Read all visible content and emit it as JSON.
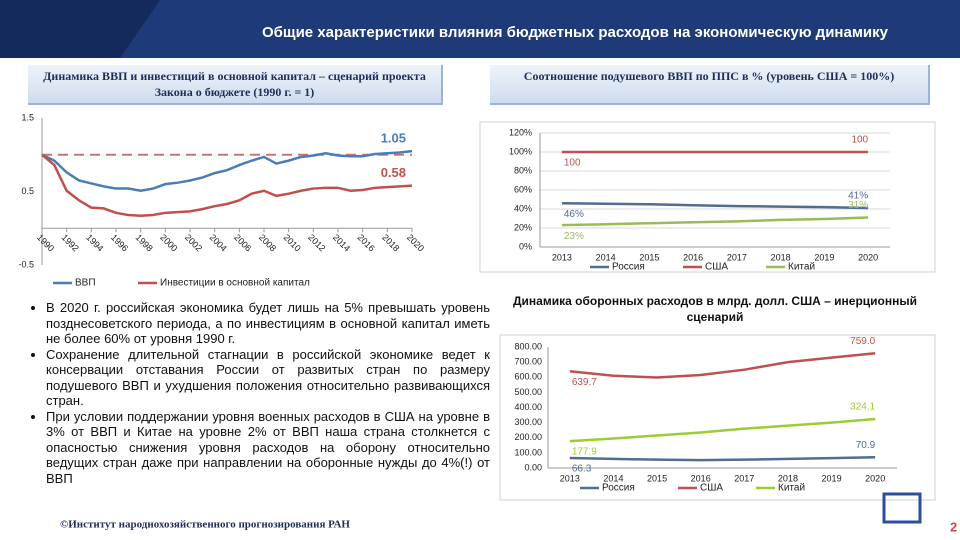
{
  "header": {
    "title": "Общие характеристики влияния бюджетных расходов на экономическую динамику"
  },
  "bullets": [
    "В 2020 г. российская экономика будет лишь на 5% превышать уровень позднесоветского периода, а по инвестициям в основной капитал иметь не более 60% от уровня 1990 г.",
    "Сохранение длительной стагнации в российской экономике ведет к консервации отставания России от развитых стран по размеру подушевого ВВП и ухудшения положения относительно развивающихся стран.",
    "При условии поддержании уровня военных расходов в США на уровне в 3% от ВВП и Китае на уровне 2% от ВВП наша страна столкнется с опасностью снижения уровня расходов на оборону относительно ведущих стран даже при направлении на оборонные нужды до 4%(!) от ВВП"
  ],
  "footer": {
    "text": "©Институт народнохозяйственного прогнозирования РАН",
    "page": "2"
  },
  "chart_data": [
    {
      "type": "line",
      "title": "Динамика ВВП и инвестиций в основной капитал – сценарий проекта Закона о бюджете (1990 г. = 1)",
      "x": [
        1990,
        1991,
        1992,
        1993,
        1994,
        1995,
        1996,
        1997,
        1998,
        1999,
        2000,
        2001,
        2002,
        2003,
        2004,
        2005,
        2006,
        2007,
        2008,
        2009,
        2010,
        2011,
        2012,
        2013,
        2014,
        2015,
        2016,
        2017,
        2018,
        2019,
        2020
      ],
      "xlim": [
        1990,
        2020
      ],
      "xticks": [
        1990,
        1992,
        1994,
        1996,
        1998,
        2000,
        2002,
        2004,
        2006,
        2008,
        2010,
        2012,
        2014,
        2016,
        2018,
        2020
      ],
      "ylim": [
        -0.5,
        1.5
      ],
      "yticks": [
        -0.5,
        0.5,
        1.5
      ],
      "hline": 1,
      "grid": false,
      "data_labels": "last",
      "series": [
        {
          "name": "ВВП",
          "color": "#4a7db5",
          "values": [
            1.0,
            0.92,
            0.76,
            0.65,
            0.61,
            0.57,
            0.54,
            0.54,
            0.51,
            0.54,
            0.6,
            0.62,
            0.65,
            0.69,
            0.75,
            0.79,
            0.86,
            0.92,
            0.97,
            0.88,
            0.92,
            0.97,
            0.99,
            1.02,
            0.99,
            0.98,
            0.98,
            1.01,
            1.02,
            1.03,
            1.05
          ]
        },
        {
          "name": "Инвестиции в основной капитал",
          "color": "#c0504d",
          "values": [
            1.0,
            0.86,
            0.51,
            0.38,
            0.28,
            0.27,
            0.21,
            0.18,
            0.17,
            0.18,
            0.21,
            0.22,
            0.23,
            0.26,
            0.3,
            0.33,
            0.38,
            0.47,
            0.51,
            0.44,
            0.47,
            0.51,
            0.54,
            0.55,
            0.55,
            0.51,
            0.52,
            0.55,
            0.56,
            0.57,
            0.58
          ]
        }
      ]
    },
    {
      "type": "line",
      "title": "Соотношение подушевого ВВП по ППС в % (уровень США = 100%)",
      "categories": [
        "2013",
        "2014",
        "2015",
        "2016",
        "2017",
        "2018",
        "2019",
        "2020"
      ],
      "ylim": [
        0,
        120
      ],
      "yticks": [
        {
          "value": 0,
          "label": "0%"
        },
        {
          "value": 20,
          "label": "20%"
        },
        {
          "value": 40,
          "label": "40%"
        },
        {
          "value": 60,
          "label": "60%"
        },
        {
          "value": 80,
          "label": "80%"
        },
        {
          "value": 100,
          "label": "100%"
        },
        {
          "value": 120,
          "label": "120%"
        }
      ],
      "grid": true,
      "data_labels": "ends",
      "series": [
        {
          "name": "Россия",
          "color": "#4f6d91",
          "values": [
            46,
            45.5,
            45,
            44,
            43,
            42.5,
            42,
            41
          ],
          "value_labels": [
            "46%",
            null,
            null,
            null,
            null,
            null,
            null,
            "41%"
          ]
        },
        {
          "name": "США",
          "color": "#c0504d",
          "values": [
            100,
            100,
            100,
            100,
            100,
            100,
            100,
            100
          ]
        },
        {
          "name": "Китай",
          "color": "#9bbb59",
          "values": [
            23,
            24,
            25,
            26,
            27,
            28.5,
            29.5,
            31
          ],
          "value_labels": [
            "23%",
            null,
            null,
            null,
            null,
            null,
            null,
            "31%"
          ]
        }
      ]
    },
    {
      "type": "line",
      "title": "Динамика оборонных расходов в млрд. долл. США – инерционный сценарий",
      "categories": [
        "2013",
        "2014",
        "2015",
        "2016",
        "2017",
        "2018",
        "2019",
        "2020"
      ],
      "ylim": [
        0,
        800
      ],
      "yticks": [
        {
          "value": 0,
          "label": "0.00"
        },
        {
          "value": 100,
          "label": "100.00"
        },
        {
          "value": 200,
          "label": "200.00"
        },
        {
          "value": 300,
          "label": "300.00"
        },
        {
          "value": 400,
          "label": "400.00"
        },
        {
          "value": 500,
          "label": "500.00"
        },
        {
          "value": 600,
          "label": "600.00"
        },
        {
          "value": 700,
          "label": "700.00"
        },
        {
          "value": 800,
          "label": "800.00"
        }
      ],
      "grid": false,
      "data_labels": "ends",
      "series": [
        {
          "name": "Россия",
          "color": "#4f6d91",
          "values": [
            66.3,
            60,
            55,
            52,
            55,
            60,
            65,
            70.9
          ]
        },
        {
          "name": "США",
          "color": "#c0504d",
          "values": [
            639.7,
            610,
            598,
            615,
            650,
            700,
            730,
            759
          ],
          "value_labels": [
            null,
            null,
            null,
            null,
            null,
            null,
            null,
            "759.0"
          ]
        },
        {
          "name": "Китай",
          "color": "#9acd32",
          "values": [
            177.9,
            195,
            215,
            235,
            260,
            280,
            300,
            324.1
          ]
        }
      ]
    }
  ]
}
